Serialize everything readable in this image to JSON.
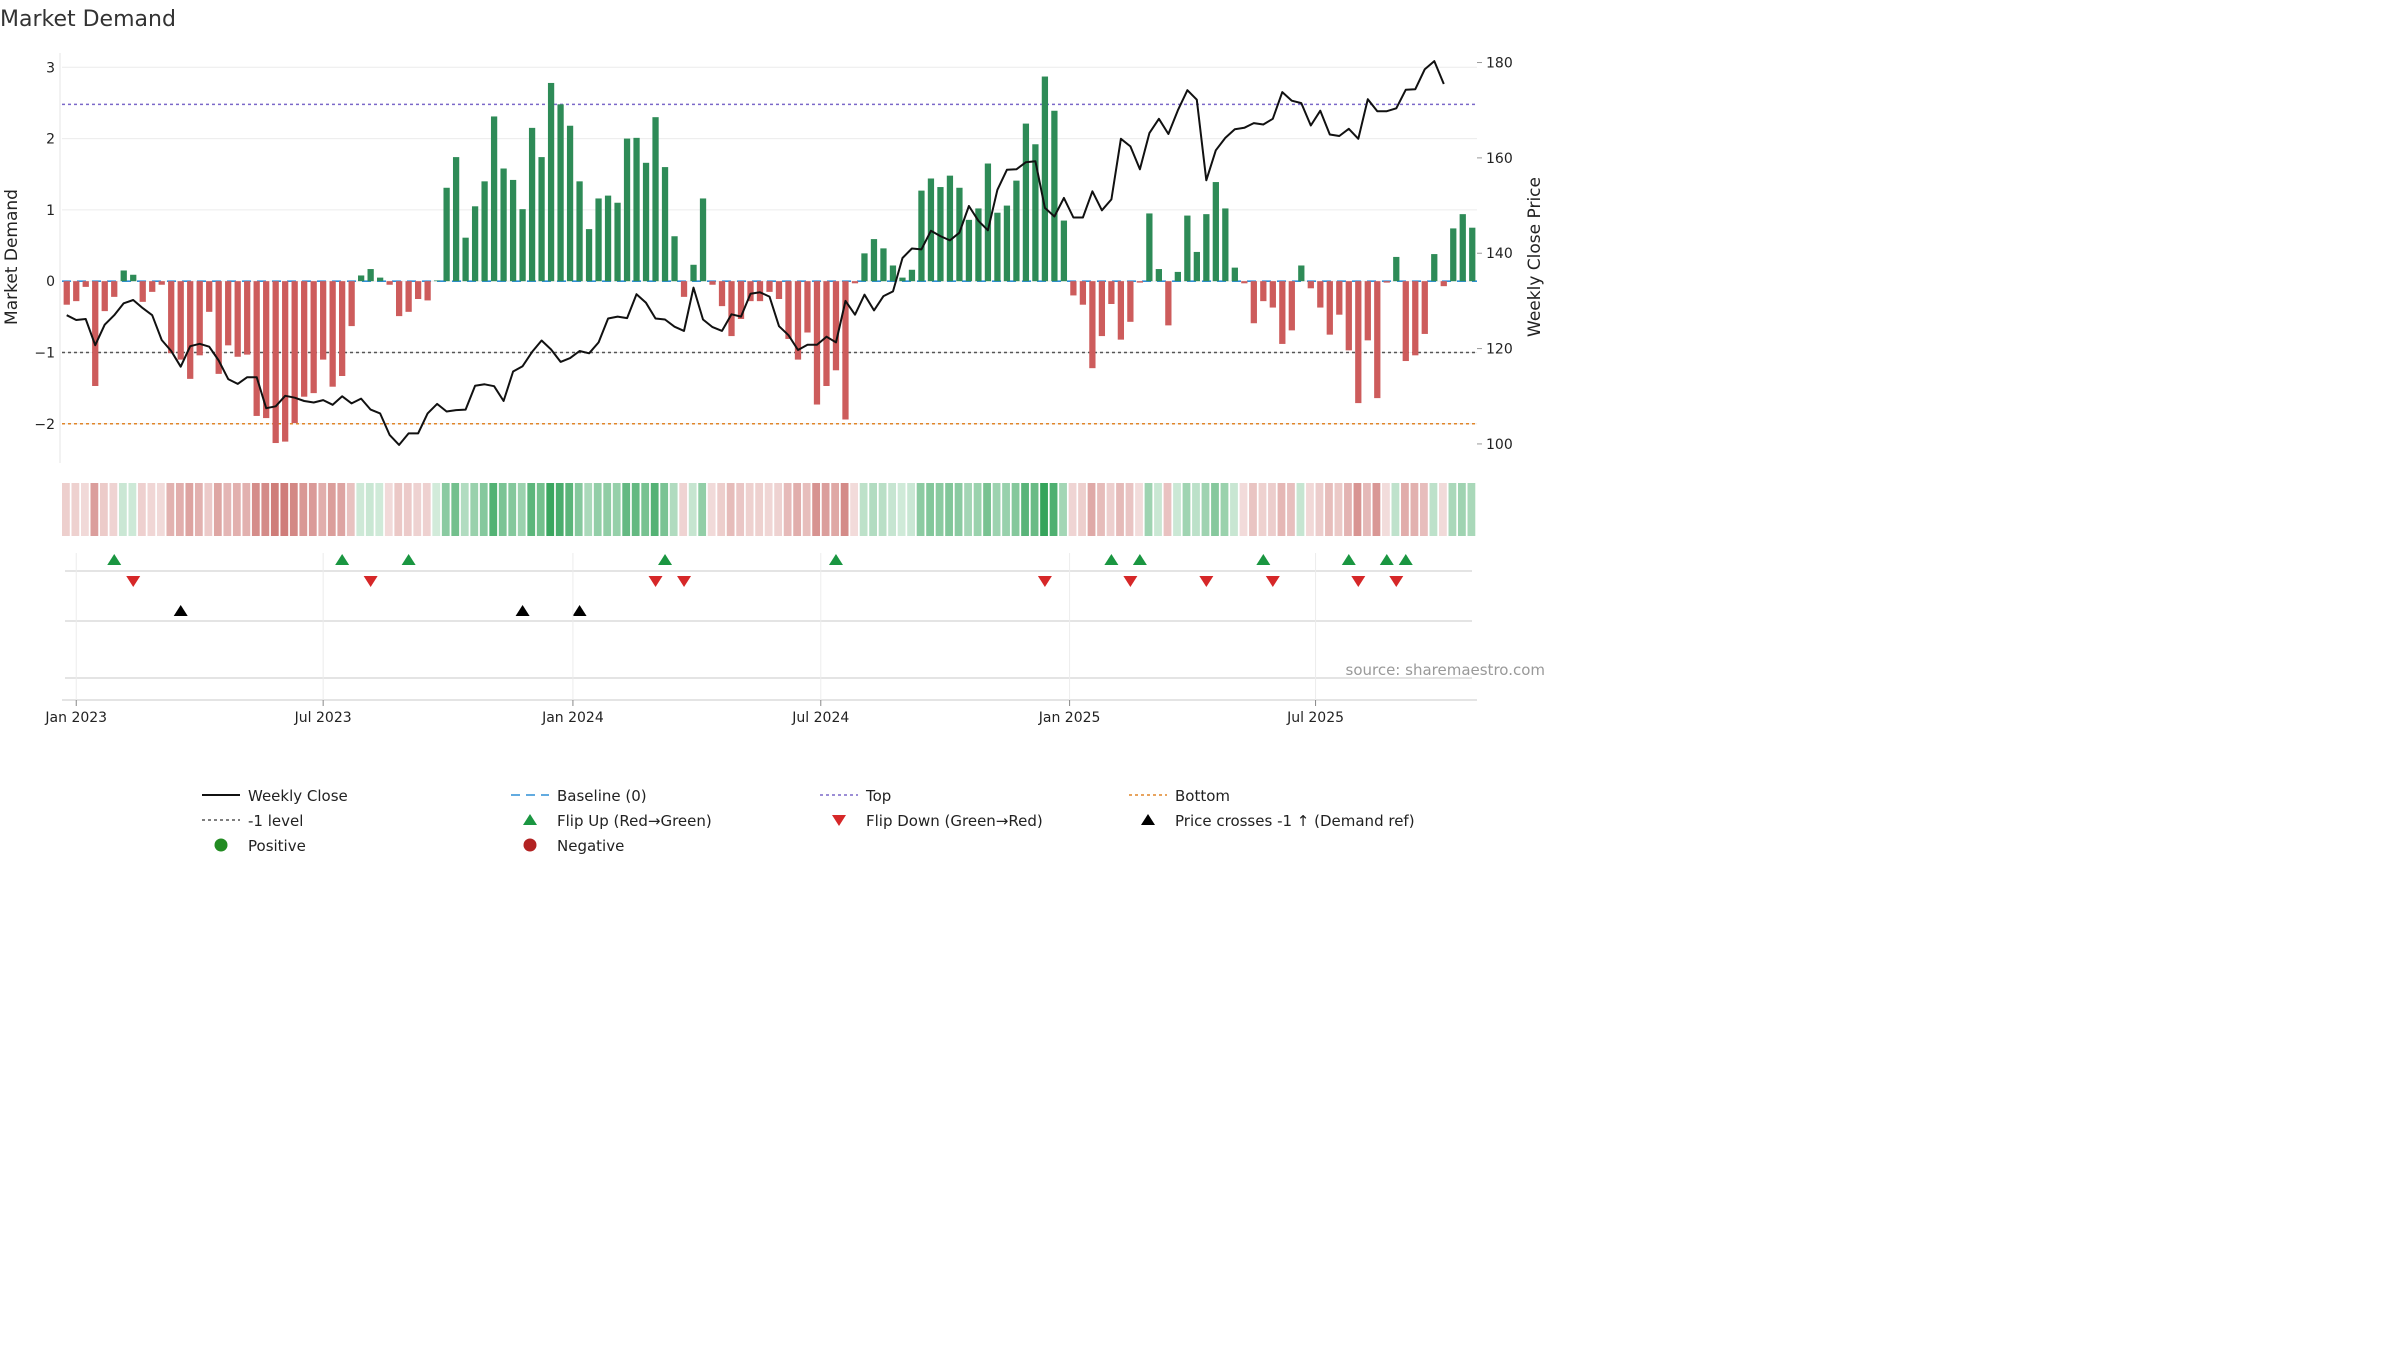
{
  "chart_data": {
    "type": "bar+line",
    "title": "Market Demand",
    "ylabel_left": "Market Demand",
    "ylabel_right": "Weekly Close Price",
    "ylim_left": [
      -2.55,
      3.2
    ],
    "ylim_right": [
      96,
      182
    ],
    "yticks_left": [
      3,
      2,
      1,
      0,
      -1,
      -2
    ],
    "yticks_left_labels": [
      "3",
      "2",
      "1",
      "0",
      "−1",
      "−2"
    ],
    "yticks_right": [
      180,
      160,
      140,
      120,
      100
    ],
    "x_start": "2023-01-06",
    "week_count": 144,
    "xticks": [
      {
        "label": "Jan 2023",
        "week": 1.5
      },
      {
        "label": "Jul 2023",
        "week": 27.5
      },
      {
        "label": "Jan 2024",
        "week": 53.8
      },
      {
        "label": "Jul 2024",
        "week": 79.9
      },
      {
        "label": "Jan 2025",
        "week": 106.1
      },
      {
        "label": "Jul 2025",
        "week": 132
      }
    ],
    "reference_lines": [
      {
        "name": "Top",
        "value": 2.48,
        "color": "#7b68c9"
      },
      {
        "name": "-1 level",
        "value": -1,
        "color": "#555555"
      },
      {
        "name": "Bottom",
        "value": -2,
        "color": "#e0862a"
      },
      {
        "name": "Baseline (0)",
        "value": 0,
        "color": "#2f8fd6"
      }
    ],
    "series": [
      {
        "name": "Market Demand",
        "type": "bar",
        "values": [
          -0.33,
          -0.28,
          -0.08,
          -1.47,
          -0.42,
          -0.22,
          0.15,
          0.09,
          -0.29,
          -0.15,
          -0.05,
          -1.01,
          -1.1,
          -1.37,
          -1.04,
          -0.43,
          -1.3,
          -0.9,
          -1.06,
          -1.03,
          -1.89,
          -1.92,
          -2.27,
          -2.25,
          -1.99,
          -1.62,
          -1.57,
          -1.1,
          -1.48,
          -1.33,
          -0.63,
          0.08,
          0.17,
          0.05,
          -0.05,
          -0.49,
          -0.43,
          -0.25,
          -0.27,
          0.01,
          1.31,
          1.74,
          0.61,
          1.05,
          1.4,
          2.31,
          1.58,
          1.42,
          1.01,
          2.15,
          1.74,
          2.78,
          2.48,
          2.18,
          1.4,
          0.73,
          1.16,
          1.2,
          1.1,
          2.0,
          2.01,
          1.66,
          2.3,
          1.6,
          0.63,
          -0.22,
          0.23,
          1.16,
          -0.05,
          -0.35,
          -0.77,
          -0.53,
          -0.28,
          -0.28,
          -0.15,
          -0.25,
          -0.81,
          -1.1,
          -0.72,
          -1.73,
          -1.47,
          -1.25,
          -1.94,
          -0.03,
          0.39,
          0.59,
          0.46,
          0.22,
          0.05,
          0.16,
          1.27,
          1.44,
          1.32,
          1.48,
          1.31,
          0.86,
          1.02,
          1.65,
          0.96,
          1.06,
          1.41,
          2.21,
          1.92,
          2.87,
          2.39,
          0.85,
          -0.2,
          -0.33,
          -1.22,
          -0.77,
          -0.32,
          -0.82,
          -0.57,
          -0.02,
          0.95,
          0.17,
          -0.62,
          0.13,
          0.92,
          0.41,
          0.94,
          1.39,
          1.02,
          0.19,
          -0.03,
          -0.59,
          -0.28,
          -0.37,
          -0.88,
          -0.69,
          0.22,
          -0.1,
          -0.37,
          -0.75,
          -0.47,
          -0.97,
          -1.71,
          -0.83,
          -1.64,
          -0.02,
          0.34,
          -1.12,
          -1.04,
          -0.74,
          0.38,
          -0.07,
          0.74,
          0.94,
          0.75
        ]
      },
      {
        "name": "Weekly Close",
        "type": "line",
        "values": [
          127,
          126,
          126.2,
          120.7,
          125,
          127,
          129.5,
          130.2,
          128.5,
          127,
          121.8,
          119.5,
          116.2,
          120.5,
          121,
          120.4,
          117.5,
          113.6,
          112.6,
          114,
          114,
          107.5,
          107.9,
          110.1,
          109.7,
          109,
          108.7,
          109.2,
          108.2,
          110,
          108.5,
          109.5,
          107.2,
          106.4,
          101.9,
          99.8,
          102.2,
          102.2,
          106.4,
          108.4,
          106.8,
          107.1,
          107.2,
          112.2,
          112.5,
          112.1,
          109,
          115.2,
          116.3,
          119.3,
          121.7,
          119.8,
          117.2,
          118,
          119.5,
          119,
          121.3,
          126.3,
          126.7,
          126.4,
          131.4,
          129.6,
          126.3,
          126.1,
          124.6,
          123.7,
          132.8,
          126.1,
          124.5,
          123.7,
          127.2,
          126.7,
          131.5,
          131.8,
          130.9,
          124.7,
          122.8,
          119.7,
          120.8,
          120.8,
          122.5,
          121.3,
          130,
          127.1,
          131.3,
          128,
          131,
          132,
          139,
          141,
          140.8,
          144.7,
          143.6,
          142.7,
          144.3,
          149.9,
          146.8,
          144.8,
          153.3,
          157.5,
          157.6,
          159.1,
          159.3,
          149.5,
          147.7,
          151.6,
          147.5,
          147.5,
          153,
          149,
          151.3,
          164,
          162.4,
          157.6,
          165.2,
          168.2,
          165,
          170,
          174.2,
          172.2,
          155.3,
          161.6,
          164.2,
          166,
          166.3,
          167.3,
          167,
          168.2,
          173.8,
          172,
          171.5,
          166.8,
          169.9,
          164.9,
          164.6,
          166.1,
          164,
          172.3,
          169.8,
          169.8,
          170.4,
          174.3,
          174.4,
          178.6,
          180.3,
          175.5
        ]
      }
    ],
    "band_label": "Demand intensity heat strip",
    "flip_up_weeks": [
      5,
      29,
      36,
      63,
      81,
      110,
      113,
      126,
      135,
      139,
      141
    ],
    "flip_down_weeks": [
      7,
      32,
      62,
      65,
      103,
      112,
      120,
      127,
      136,
      140
    ],
    "price_cross_weeks": [
      12,
      48,
      54
    ],
    "legend": [
      "Weekly Close",
      "Baseline (0)",
      "Top",
      "Bottom",
      "-1 level",
      "Flip Up (Red→Green)",
      "Flip Down (Green→Red)",
      "Price crosses -1 ↑ (Demand ref)",
      "Positive",
      "Negative"
    ],
    "source": "source: sharemaestro.com",
    "colors": {
      "positive": "#2e8b57",
      "negative": "#cd5c5c",
      "line": "#111111",
      "flip_up": "#1a9641",
      "flip_down": "#d62728",
      "cross": "#000000",
      "positive_marker": "#228b22",
      "negative_marker": "#b22222"
    }
  }
}
